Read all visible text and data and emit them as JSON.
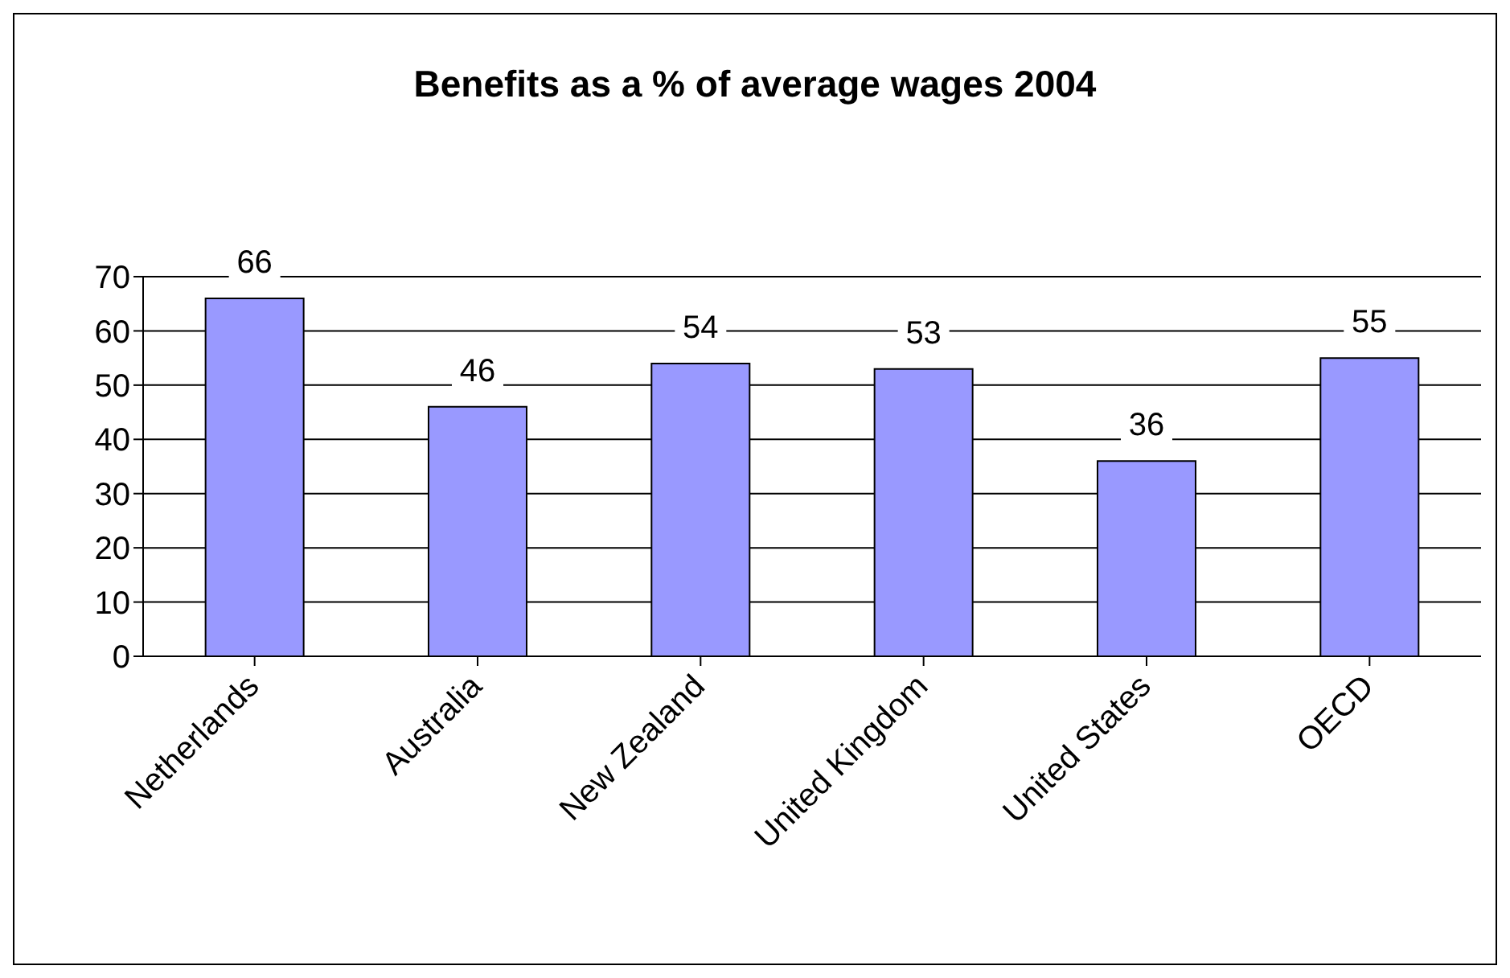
{
  "chart_data": {
    "type": "bar",
    "title": "Benefits as a % of average wages 2004",
    "categories": [
      "Netherlands",
      "Australia",
      "New Zealand",
      "United Kingdom",
      "United States",
      "OECD"
    ],
    "values": [
      66,
      46,
      54,
      53,
      36,
      55
    ],
    "color": "#9999ff",
    "ylim": [
      0,
      70
    ],
    "yticks": [
      0,
      10,
      20,
      30,
      40,
      50,
      60,
      70
    ],
    "grid": "y",
    "data_labels": true
  }
}
